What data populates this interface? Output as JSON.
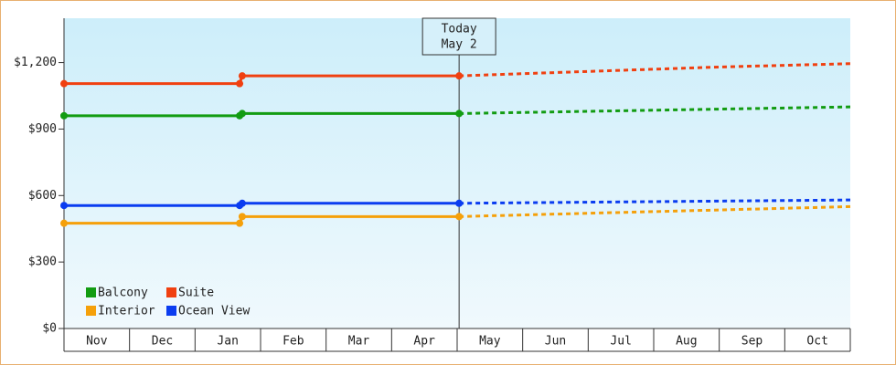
{
  "chart_data": {
    "type": "line",
    "ylim": [
      0,
      1400
    ],
    "yticks": [
      {
        "value": 0,
        "label": "$0"
      },
      {
        "value": 300,
        "label": "$300"
      },
      {
        "value": 600,
        "label": "$600"
      },
      {
        "value": 900,
        "label": "$900"
      },
      {
        "value": 1200,
        "label": "$1,200"
      }
    ],
    "xlim": [
      0,
      12
    ],
    "xticks": [
      {
        "value": 0.5,
        "label": "Nov"
      },
      {
        "value": 1.5,
        "label": "Dec"
      },
      {
        "value": 2.5,
        "label": "Jan"
      },
      {
        "value": 3.5,
        "label": "Feb"
      },
      {
        "value": 4.5,
        "label": "Mar"
      },
      {
        "value": 5.5,
        "label": "Apr"
      },
      {
        "value": 6.5,
        "label": "May"
      },
      {
        "value": 7.5,
        "label": "Jun"
      },
      {
        "value": 8.5,
        "label": "Jul"
      },
      {
        "value": 9.5,
        "label": "Aug"
      },
      {
        "value": 10.5,
        "label": "Sep"
      },
      {
        "value": 11.5,
        "label": "Oct"
      }
    ],
    "annotation": {
      "x": 6.03,
      "lines": [
        "Today",
        "May 2"
      ]
    },
    "legend": "bottom-left",
    "series": [
      {
        "name": "Balcony",
        "color": "#129c12",
        "x": [
          0,
          2.68,
          2.72,
          6.03
        ],
        "values": [
          960,
          960,
          970,
          970
        ],
        "forecast_x": [
          6.03,
          8,
          10,
          12
        ],
        "forecast_values": [
          970,
          980,
          990,
          1000
        ]
      },
      {
        "name": "Suite",
        "color": "#f04010",
        "x": [
          0,
          2.68,
          2.72,
          6.03
        ],
        "values": [
          1105,
          1105,
          1140,
          1140
        ],
        "forecast_x": [
          6.03,
          8,
          10,
          12
        ],
        "forecast_values": [
          1140,
          1160,
          1180,
          1195
        ]
      },
      {
        "name": "Interior",
        "color": "#f5a00a",
        "x": [
          0,
          2.68,
          2.72,
          6.03
        ],
        "values": [
          475,
          475,
          505,
          505
        ],
        "forecast_x": [
          6.03,
          8,
          10,
          12
        ],
        "forecast_values": [
          505,
          520,
          535,
          550
        ]
      },
      {
        "name": "Ocean View",
        "color": "#0a3cf0",
        "x": [
          0,
          2.68,
          2.72,
          6.03
        ],
        "values": [
          555,
          555,
          565,
          565
        ],
        "forecast_x": [
          6.03,
          8,
          10,
          12
        ],
        "forecast_values": [
          565,
          570,
          575,
          580
        ]
      }
    ]
  }
}
